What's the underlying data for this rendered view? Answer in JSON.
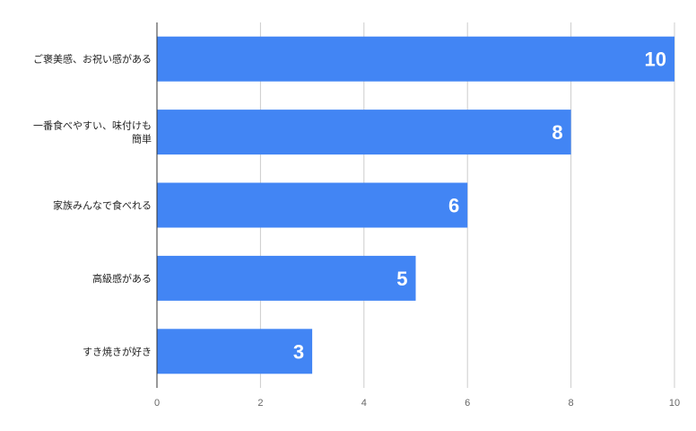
{
  "chart_data": {
    "type": "bar",
    "orientation": "horizontal",
    "categories": [
      [
        "ご褒美感、お祝い感がある"
      ],
      [
        "一番食べやすい、味付けも",
        "簡単"
      ],
      [
        "家族みんなで食べれる"
      ],
      [
        "高級感がある"
      ],
      [
        "すき焼きが好き"
      ]
    ],
    "values": [
      10,
      8,
      6,
      5,
      3
    ],
    "value_labels": [
      "10",
      "8",
      "6",
      "5",
      "3"
    ],
    "xlim": [
      0,
      10
    ],
    "xticks": [
      0,
      2,
      4,
      6,
      8,
      10
    ],
    "xtick_labels": [
      "0",
      "2",
      "4",
      "6",
      "8",
      "10"
    ],
    "grid": "vertical",
    "legend": "none",
    "title": "",
    "xlabel": "",
    "ylabel": "",
    "colors": {
      "bar": "#4285f4",
      "grid": "#cccccc",
      "axis": "#333333",
      "value_label": "#ffffff"
    }
  }
}
